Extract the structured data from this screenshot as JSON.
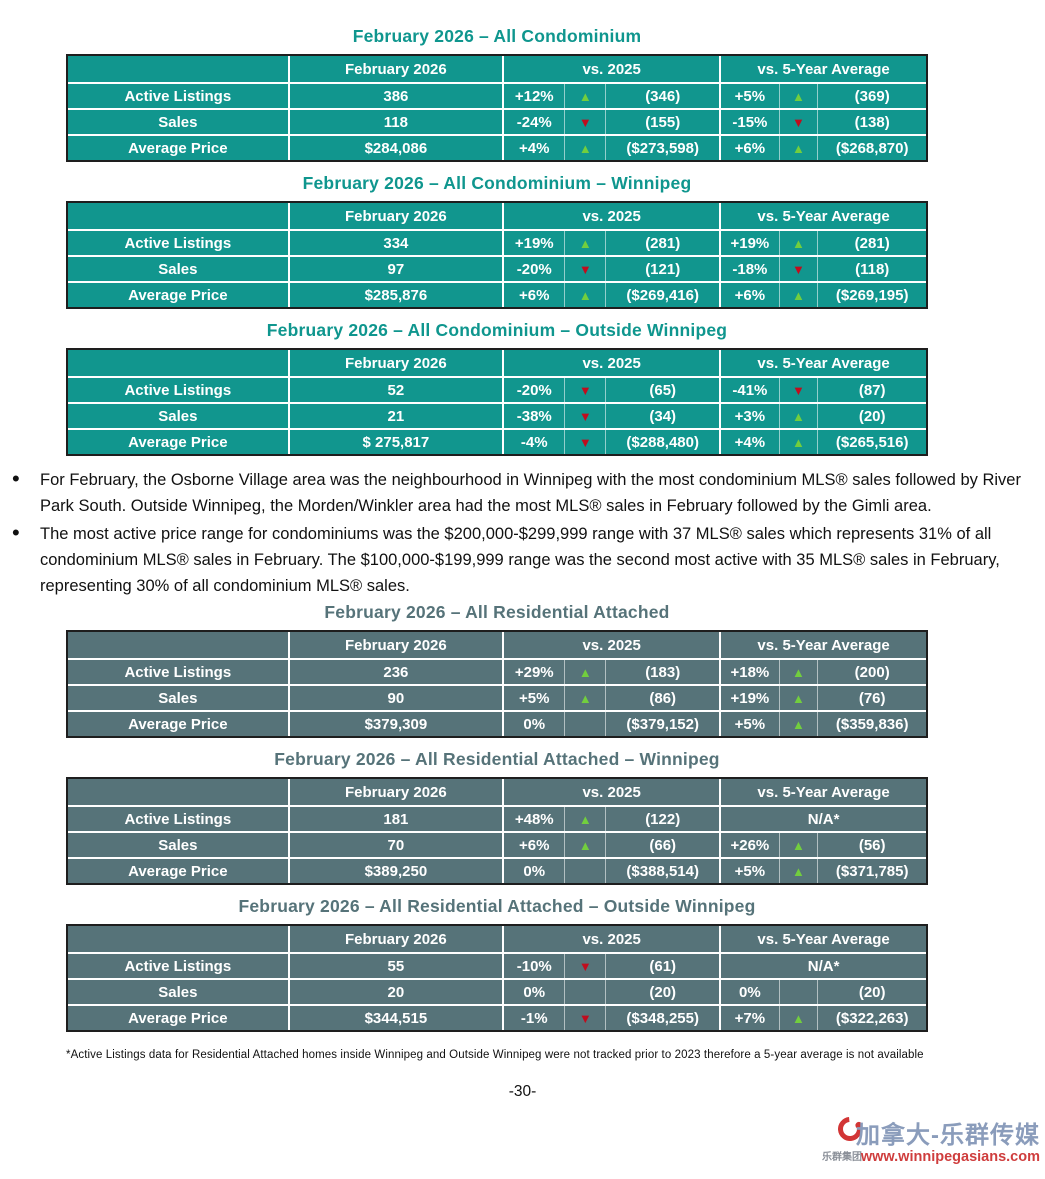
{
  "colors": {
    "condo_teal": "#11968E",
    "attached_slate": "#567379",
    "up_green": "#72CE3E",
    "down_red": "#C00D1E",
    "watermark_blue": "#8A9CBB",
    "watermark_red": "#CF3D3D"
  },
  "tables": [
    {
      "title": "February 2026 – All Condominium",
      "theme": "teal",
      "columns": [
        "",
        "February 2026",
        "vs. 2025",
        "vs. 5-Year Average"
      ],
      "rows": [
        {
          "label": "Active Listings",
          "value": "386",
          "vs2025": {
            "pct": "+12%",
            "dir": "up",
            "ref": "(346)"
          },
          "vs5yr": {
            "pct": "+5%",
            "dir": "up",
            "ref": "(369)"
          }
        },
        {
          "label": "Sales",
          "value": "118",
          "vs2025": {
            "pct": "-24%",
            "dir": "down",
            "ref": "(155)"
          },
          "vs5yr": {
            "pct": "-15%",
            "dir": "down",
            "ref": "(138)"
          }
        },
        {
          "label": "Average Price",
          "value": "$284,086",
          "vs2025": {
            "pct": "+4%",
            "dir": "up",
            "ref": "($273,598)"
          },
          "vs5yr": {
            "pct": "+6%",
            "dir": "up",
            "ref": "($268,870)"
          }
        }
      ]
    },
    {
      "title": "February 2026 – All Condominium – Winnipeg",
      "theme": "teal",
      "columns": [
        "",
        "February 2026",
        "vs. 2025",
        "vs. 5-Year Average"
      ],
      "rows": [
        {
          "label": "Active Listings",
          "value": "334",
          "vs2025": {
            "pct": "+19%",
            "dir": "up",
            "ref": "(281)"
          },
          "vs5yr": {
            "pct": "+19%",
            "dir": "up",
            "ref": "(281)"
          }
        },
        {
          "label": "Sales",
          "value": "97",
          "vs2025": {
            "pct": "-20%",
            "dir": "down",
            "ref": "(121)"
          },
          "vs5yr": {
            "pct": "-18%",
            "dir": "down",
            "ref": "(118)"
          }
        },
        {
          "label": "Average Price",
          "value": "$285,876",
          "vs2025": {
            "pct": "+6%",
            "dir": "up",
            "ref": "($269,416)"
          },
          "vs5yr": {
            "pct": "+6%",
            "dir": "up",
            "ref": "($269,195)"
          }
        }
      ]
    },
    {
      "title": "February 2026 – All Condominium – Outside Winnipeg",
      "theme": "teal",
      "columns": [
        "",
        "February 2026",
        "vs. 2025",
        "vs. 5-Year Average"
      ],
      "rows": [
        {
          "label": "Active Listings",
          "value": "52",
          "vs2025": {
            "pct": "-20%",
            "dir": "down",
            "ref": "(65)"
          },
          "vs5yr": {
            "pct": "-41%",
            "dir": "down",
            "ref": "(87)"
          }
        },
        {
          "label": "Sales",
          "value": "21",
          "vs2025": {
            "pct": "-38%",
            "dir": "down",
            "ref": "(34)"
          },
          "vs5yr": {
            "pct": "+3%",
            "dir": "up",
            "ref": "(20)"
          }
        },
        {
          "label": "Average Price",
          "value": "$ 275,817",
          "vs2025": {
            "pct": "-4%",
            "dir": "down",
            "ref": "($288,480)"
          },
          "vs5yr": {
            "pct": "+4%",
            "dir": "up",
            "ref": "($265,516)"
          }
        }
      ]
    },
    {
      "title": "February 2026 – All Residential Attached",
      "theme": "slate",
      "columns": [
        "",
        "February 2026",
        "vs. 2025",
        "vs. 5-Year Average"
      ],
      "rows": [
        {
          "label": "Active Listings",
          "value": "236",
          "vs2025": {
            "pct": "+29%",
            "dir": "up",
            "ref": "(183)"
          },
          "vs5yr": {
            "pct": "+18%",
            "dir": "up",
            "ref": "(200)"
          }
        },
        {
          "label": "Sales",
          "value": "90",
          "vs2025": {
            "pct": "+5%",
            "dir": "up",
            "ref": "(86)"
          },
          "vs5yr": {
            "pct": "+19%",
            "dir": "up",
            "ref": "(76)"
          }
        },
        {
          "label": "Average Price",
          "value": "$379,309",
          "vs2025": {
            "pct": "0%",
            "dir": "none",
            "ref": "($379,152)"
          },
          "vs5yr": {
            "pct": "+5%",
            "dir": "up",
            "ref": "($359,836)"
          }
        }
      ]
    },
    {
      "title": "February 2026 – All Residential Attached – Winnipeg",
      "theme": "slate",
      "columns": [
        "",
        "February 2026",
        "vs. 2025",
        "vs. 5-Year Average"
      ],
      "rows": [
        {
          "label": "Active Listings",
          "value": "181",
          "vs2025": {
            "pct": "+48%",
            "dir": "up",
            "ref": "(122)"
          },
          "vs5yr": {
            "na": "N/A*"
          }
        },
        {
          "label": "Sales",
          "value": "70",
          "vs2025": {
            "pct": "+6%",
            "dir": "up",
            "ref": "(66)"
          },
          "vs5yr": {
            "pct": "+26%",
            "dir": "up",
            "ref": "(56)"
          }
        },
        {
          "label": "Average Price",
          "value": "$389,250",
          "vs2025": {
            "pct": "0%",
            "dir": "none",
            "ref": "($388,514)"
          },
          "vs5yr": {
            "pct": "+5%",
            "dir": "up",
            "ref": "($371,785)"
          }
        }
      ]
    },
    {
      "title": "February 2026 – All Residential Attached – Outside Winnipeg",
      "theme": "slate",
      "columns": [
        "",
        "February 2026",
        "vs. 2025",
        "vs. 5-Year Average"
      ],
      "rows": [
        {
          "label": "Active Listings",
          "value": "55",
          "vs2025": {
            "pct": "-10%",
            "dir": "down",
            "ref": "(61)"
          },
          "vs5yr": {
            "na": "N/A*"
          }
        },
        {
          "label": "Sales",
          "value": "20",
          "vs2025": {
            "pct": "0%",
            "dir": "none",
            "ref": "(20)"
          },
          "vs5yr": {
            "pct": "0%",
            "dir": "none",
            "ref": "(20)"
          }
        },
        {
          "label": "Average Price",
          "value": "$344,515",
          "vs2025": {
            "pct": "-1%",
            "dir": "down",
            "ref": "($348,255)"
          },
          "vs5yr": {
            "pct": "+7%",
            "dir": "up",
            "ref": "($322,263)"
          }
        }
      ]
    }
  ],
  "bullets": [
    "For February, the Osborne Village area was the neighbourhood in Winnipeg with the most condominium MLS® sales followed by River Park South. Outside Winnipeg, the Morden/Winkler area had the most MLS® sales in February followed by the Gimli area.",
    "The most active price range for condominiums was the $200,000-$299,999 range with 37 MLS® sales which represents 31% of all condominium MLS® sales in February. The $100,000-$199,999 range was the second most active with 35 MLS® sales in February, representing 30% of all condominium MLS® sales."
  ],
  "footnote": "*Active Listings data for Residential Attached homes inside Winnipeg and Outside Winnipeg were not tracked prior to 2023 therefore a 5-year average is not available",
  "page": {
    "number": "-30-"
  },
  "watermark": {
    "brand": "加拿大-乐群传媒",
    "company": "乐群集团",
    "url": "www.winnipegasians.com"
  }
}
